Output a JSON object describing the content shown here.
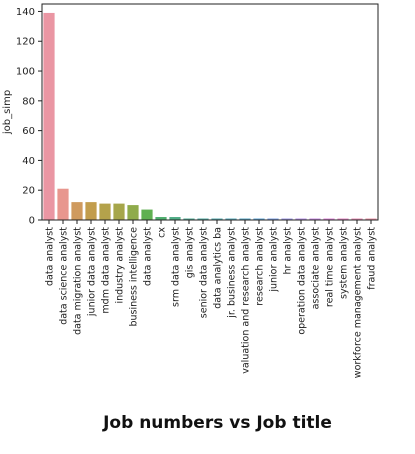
{
  "caption": "Job numbers vs Job title",
  "chart_data": {
    "type": "bar",
    "title": "",
    "xlabel": "",
    "ylabel": "job_simp",
    "ylim": [
      0,
      145
    ],
    "yticks": [
      0,
      20,
      40,
      60,
      80,
      100,
      120,
      140
    ],
    "grid": false,
    "categories": [
      "data analyst",
      "data science analyst",
      "data migration analyst",
      "junior data analyst",
      "mdm data analyst",
      "industry analyst",
      "business intelligence",
      "data analyst",
      "cx",
      "srm data analyst",
      "gis analyst",
      "senior data analyst",
      "data analytics ba",
      "jr. business analyst",
      "valuation and research analyst",
      "research analyst",
      "junior analyst",
      "hr analyst",
      "operation data analyst",
      "associate analyst",
      "real time analyst",
      "system analyst",
      "workforce management analyst",
      "fraud analyst"
    ],
    "values": [
      139,
      21,
      12,
      12,
      11,
      11,
      10,
      7,
      2,
      2,
      1,
      1,
      1,
      1,
      1,
      1,
      1,
      1,
      1,
      1,
      1,
      1,
      1,
      1
    ],
    "colors": [
      "#ea96a3",
      "#e8968e",
      "#cf9a5e",
      "#c29d4d",
      "#b4a24b",
      "#a6a64a",
      "#8fab4b",
      "#5fb051",
      "#4fae6e",
      "#50ad86",
      "#51ab95",
      "#53aaa2",
      "#54a9ad",
      "#56a8b9",
      "#58a6c6",
      "#5ea4d5",
      "#7c9fe3",
      "#9e98e6",
      "#b690e6",
      "#cb8ae4",
      "#df84d8",
      "#e688c6",
      "#e88db5",
      "#ea92a6"
    ]
  }
}
